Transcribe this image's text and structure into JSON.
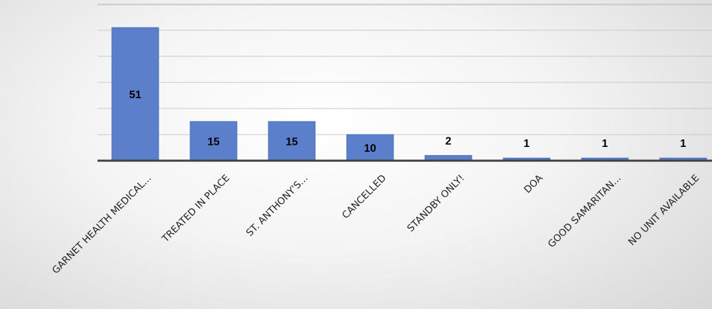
{
  "chart_data": {
    "type": "bar",
    "categories": [
      "GARNET HEALTH MEDICAL...",
      "TREATED IN PLACE",
      "ST. ANTHONY'S...",
      "CANCELLED",
      "STANDBY ONLY!",
      "DOA",
      "GOOD SAMARITAN...",
      "NO UNIT AVAILABLE"
    ],
    "values": [
      51,
      15,
      15,
      10,
      2,
      1,
      1,
      1
    ],
    "data_labels": [
      "51",
      "15",
      "15",
      "10",
      "2",
      "1",
      "1",
      "1"
    ],
    "title": "",
    "xlabel": "",
    "ylabel": "",
    "ylim": [
      0,
      60
    ],
    "grid": true,
    "legend": "none",
    "colors": {
      "bar": "#5b7fcb",
      "grid": "#c8c8c8",
      "axis": "#404040",
      "label": "#000000"
    }
  }
}
